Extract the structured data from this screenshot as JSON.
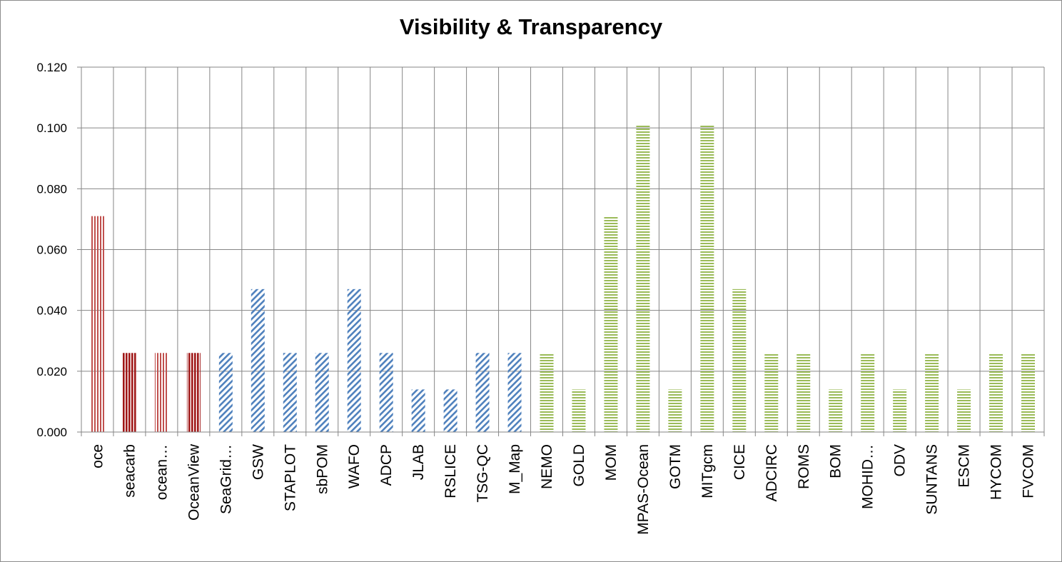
{
  "chart_data": {
    "type": "bar",
    "title": "Visibility & Transparency",
    "xlabel": "",
    "ylabel": "",
    "ylim": [
      0,
      0.12
    ],
    "yticks": [
      "0.000",
      "0.020",
      "0.040",
      "0.060",
      "0.080",
      "0.100",
      "0.120"
    ],
    "grid": true,
    "legend": "none",
    "categories": [
      "oce",
      "seacarb",
      "ocean…",
      "OceanView",
      "SeaGrid…",
      "GSW",
      "STAPLOT",
      "sbPOM",
      "WAFO",
      "ADCP",
      "JLAB",
      "RSLICE",
      "TSG-QC",
      "M_Map",
      "NEMO",
      "GOLD",
      "MOM",
      "MPAS-Ocean",
      "GOTM",
      "MITgcm",
      "CICE",
      "ADCIRC",
      "ROMS",
      "BOM",
      "MOHID…",
      "ODV",
      "SUNTANS",
      "ESCM",
      "HYCOM",
      "FVCOM"
    ],
    "values": [
      0.071,
      0.026,
      0.026,
      0.026,
      0.026,
      0.047,
      0.026,
      0.026,
      0.047,
      0.026,
      0.014,
      0.014,
      0.026,
      0.026,
      0.026,
      0.014,
      0.071,
      0.101,
      0.014,
      0.101,
      0.047,
      0.026,
      0.026,
      0.014,
      0.026,
      0.014,
      0.026,
      0.014,
      0.026,
      0.026
    ],
    "bar_groups": [
      "red",
      "red",
      "red",
      "red",
      "blue",
      "blue",
      "blue",
      "blue",
      "blue",
      "blue",
      "blue",
      "blue",
      "blue",
      "blue",
      "green",
      "green",
      "green",
      "green",
      "green",
      "green",
      "green",
      "green",
      "green",
      "green",
      "green",
      "green",
      "green",
      "green",
      "green",
      "green"
    ],
    "colors": {
      "red": "#c0504d",
      "red_dense": "#a01818",
      "blue": "#4f81bd",
      "green": "#9bbb59",
      "grid": "#868686",
      "axis": "#868686"
    }
  }
}
